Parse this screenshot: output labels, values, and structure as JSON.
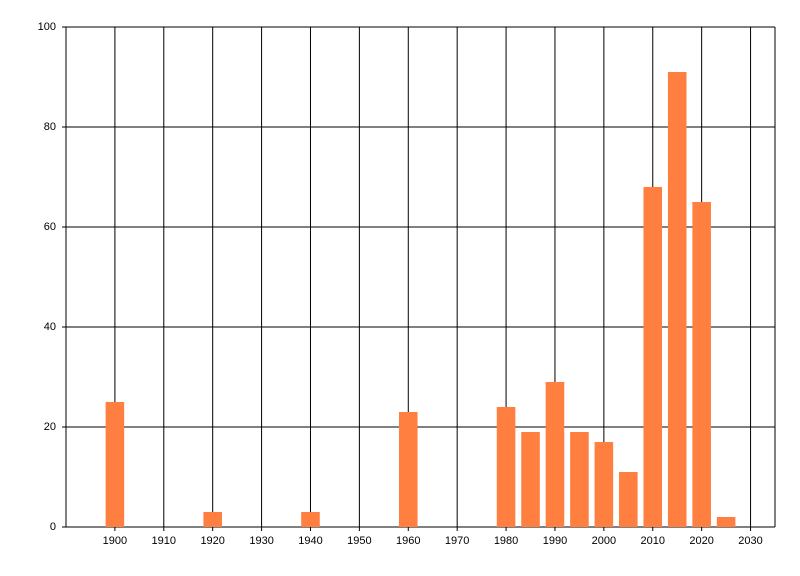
{
  "chart_data": {
    "type": "bar",
    "x": [
      1900,
      1920,
      1940,
      1960,
      1980,
      1985,
      1990,
      1995,
      2000,
      2005,
      2010,
      2015,
      2020,
      2025
    ],
    "values": [
      25,
      3,
      3,
      23,
      24,
      19,
      29,
      19,
      17,
      11,
      68,
      91,
      65,
      2
    ],
    "color": "#ff7f40",
    "xlim": [
      1890,
      2035
    ],
    "xticks": [
      1900,
      1910,
      1920,
      1930,
      1940,
      1950,
      1960,
      1970,
      1980,
      1990,
      2000,
      2010,
      2020,
      2030
    ],
    "ylim": [
      0,
      100
    ],
    "yticks": [
      0,
      20,
      40,
      60,
      80,
      100
    ],
    "grid": true
  }
}
